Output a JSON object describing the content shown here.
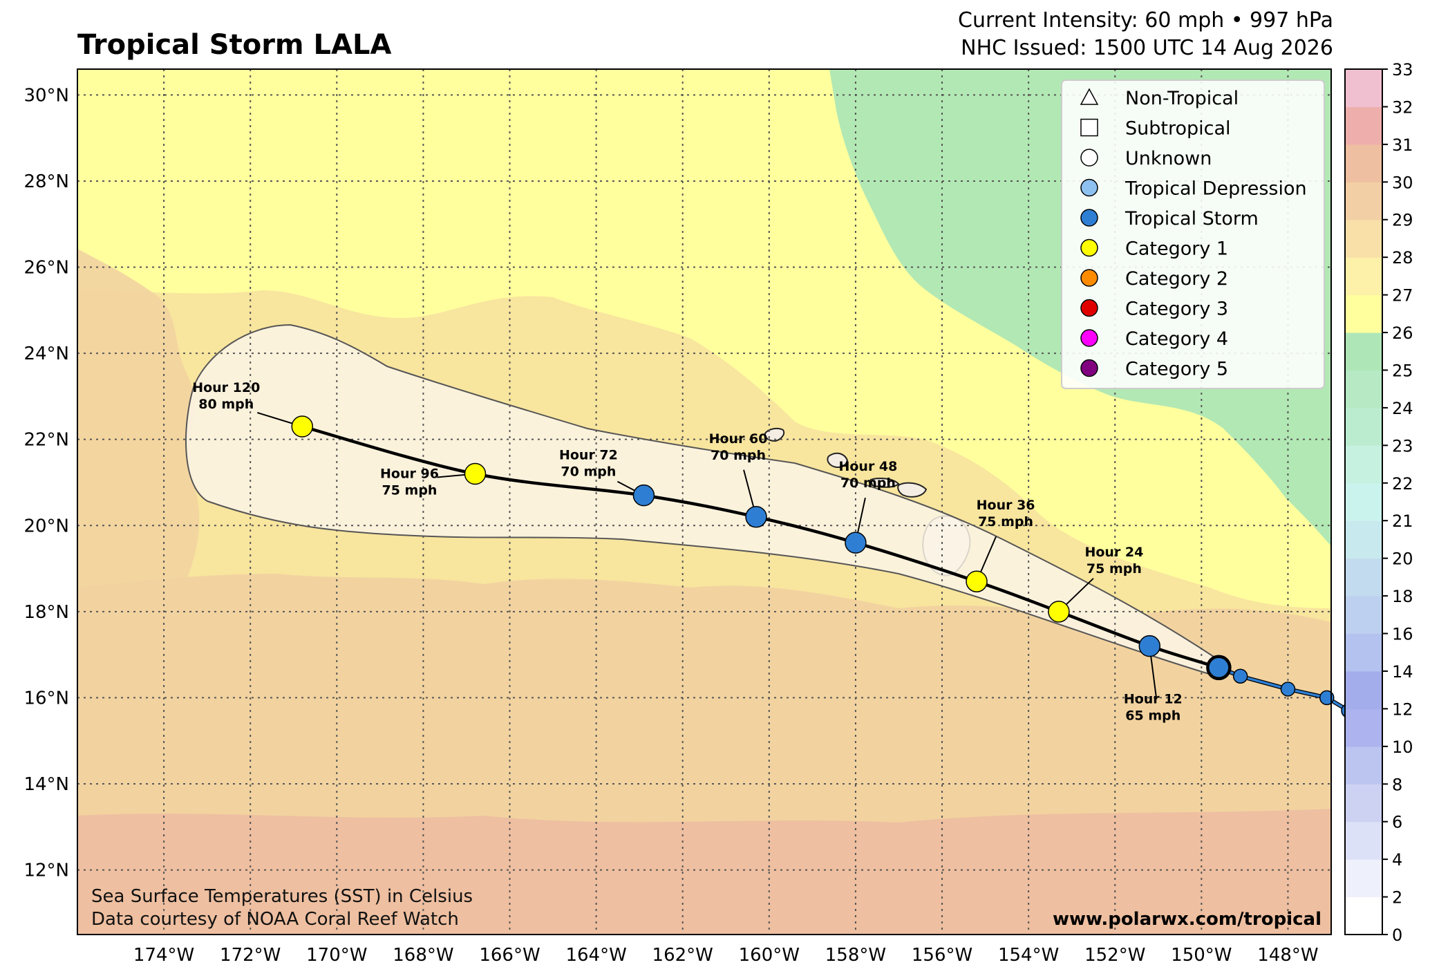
{
  "title": "Tropical Storm LALA",
  "header": {
    "intensity": "Current Intensity: 60 mph • 997 hPa",
    "issued": "NHC Issued: 1500 UTC 14 Aug 2026"
  },
  "map": {
    "lon_range": [
      -176,
      -147
    ],
    "lat_range": [
      10.5,
      30.6
    ],
    "lon_ticks": [
      -174,
      -172,
      -170,
      -168,
      -166,
      -164,
      -162,
      -160,
      -158,
      -156,
      -154,
      -152,
      -150,
      -148
    ],
    "lon_tick_labels": [
      "174°W",
      "172°W",
      "170°W",
      "168°W",
      "166°W",
      "164°W",
      "162°W",
      "160°W",
      "158°W",
      "156°W",
      "154°W",
      "152°W",
      "150°W",
      "148°W"
    ],
    "lat_ticks": [
      12,
      14,
      16,
      18,
      20,
      22,
      24,
      26,
      28,
      30
    ],
    "lat_tick_labels": [
      "12°N",
      "14°N",
      "16°N",
      "18°N",
      "20°N",
      "22°N",
      "24°N",
      "26°N",
      "28°N",
      "30°N"
    ],
    "gridlines": true
  },
  "past_track": [
    {
      "lon": -146.6,
      "lat": 15.7
    },
    {
      "lon": -147.1,
      "lat": 16.0
    },
    {
      "lon": -148.0,
      "lat": 16.2
    },
    {
      "lon": -149.1,
      "lat": 16.5
    }
  ],
  "current_position": {
    "lon": -149.6,
    "lat": 16.7,
    "category": "Tropical Storm"
  },
  "forecast_points": [
    {
      "hour_label": "Hour 12",
      "wind_label": "65 mph",
      "lon": -151.2,
      "lat": 17.2,
      "category": "Tropical Storm"
    },
    {
      "hour_label": "Hour 24",
      "wind_label": "75 mph",
      "lon": -153.3,
      "lat": 18.0,
      "category": "Category 1"
    },
    {
      "hour_label": "Hour 36",
      "wind_label": "75 mph",
      "lon": -155.2,
      "lat": 18.7,
      "category": "Category 1"
    },
    {
      "hour_label": "Hour 48",
      "wind_label": "70 mph",
      "lon": -158.0,
      "lat": 19.6,
      "category": "Tropical Storm"
    },
    {
      "hour_label": "Hour 60",
      "wind_label": "70 mph",
      "lon": -160.3,
      "lat": 20.2,
      "category": "Tropical Storm"
    },
    {
      "hour_label": "Hour 72",
      "wind_label": "70 mph",
      "lon": -162.9,
      "lat": 20.7,
      "category": "Tropical Storm"
    },
    {
      "hour_label": "Hour 96",
      "wind_label": "75 mph",
      "lon": -166.8,
      "lat": 21.2,
      "category": "Category 1"
    },
    {
      "hour_label": "Hour 120",
      "wind_label": "80 mph",
      "lon": -170.8,
      "lat": 22.3,
      "category": "Category 1"
    }
  ],
  "legend": {
    "placement": "top-right",
    "items": [
      {
        "label": "Non-Tropical",
        "shape": "triangle",
        "color": "#ffffff"
      },
      {
        "label": "Subtropical",
        "shape": "square",
        "color": "#ffffff"
      },
      {
        "label": "Unknown",
        "shape": "circle",
        "color": "#ffffff"
      },
      {
        "label": "Tropical Depression",
        "shape": "circle",
        "color": "#8fc1f0"
      },
      {
        "label": "Tropical Storm",
        "shape": "circle",
        "color": "#2e7fd4"
      },
      {
        "label": "Category 1",
        "shape": "circle",
        "color": "#ffff00"
      },
      {
        "label": "Category 2",
        "shape": "circle",
        "color": "#ff8c00"
      },
      {
        "label": "Category 3",
        "shape": "circle",
        "color": "#e00000"
      },
      {
        "label": "Category 4",
        "shape": "circle",
        "color": "#ff00ff"
      },
      {
        "label": "Category 5",
        "shape": "circle",
        "color": "#800080"
      }
    ]
  },
  "colorbar": {
    "ticks": [
      0,
      2,
      4,
      6,
      8,
      10,
      12,
      14,
      16,
      18,
      20,
      21,
      22,
      23,
      24,
      25,
      26,
      27,
      28,
      29,
      30,
      31,
      32,
      33
    ],
    "tick_labels": [
      "0",
      "2",
      "4",
      "6",
      "8",
      "10",
      "12",
      "14",
      "16",
      "18",
      "20",
      "21",
      "22",
      "23",
      "24",
      "25",
      "26",
      "27",
      "28",
      "29",
      "30",
      "31",
      "32",
      "33"
    ],
    "colors": [
      "#ffffff",
      "#eef0fb",
      "#dde1f7",
      "#cdd2f3",
      "#bcc4f0",
      "#acb3ee",
      "#a4adeb",
      "#b3c2ee",
      "#bdd0ef",
      "#c3dbee",
      "#c8e9ee",
      "#cbf3ee",
      "#c6f1e1",
      "#bcecd0",
      "#b6e9c4",
      "#aee6b7",
      "#ffff9e",
      "#fdf0a8",
      "#f8e0a8",
      "#f2cfa4",
      "#eebfa0",
      "#eeafac",
      "#f0c0d0",
      "#f8d8ee"
    ]
  },
  "credits": {
    "line1": "Sea Surface Temperatures (SST) in Celsius",
    "line2": "Data courtesy of NOAA Coral Reef Watch",
    "website": "www.polarwx.com/tropical"
  },
  "colors": {
    "sst_26_27": "#ffff9e",
    "sst_27_28": "#f8e59e",
    "sst_28_29": "#f2d3a0",
    "sst_29_30": "#eebfa0",
    "sst_cool": "#b2e8b4",
    "cone_fill": "#fcf5e6",
    "track": "#000000",
    "past_track": "#2e7fd4"
  }
}
